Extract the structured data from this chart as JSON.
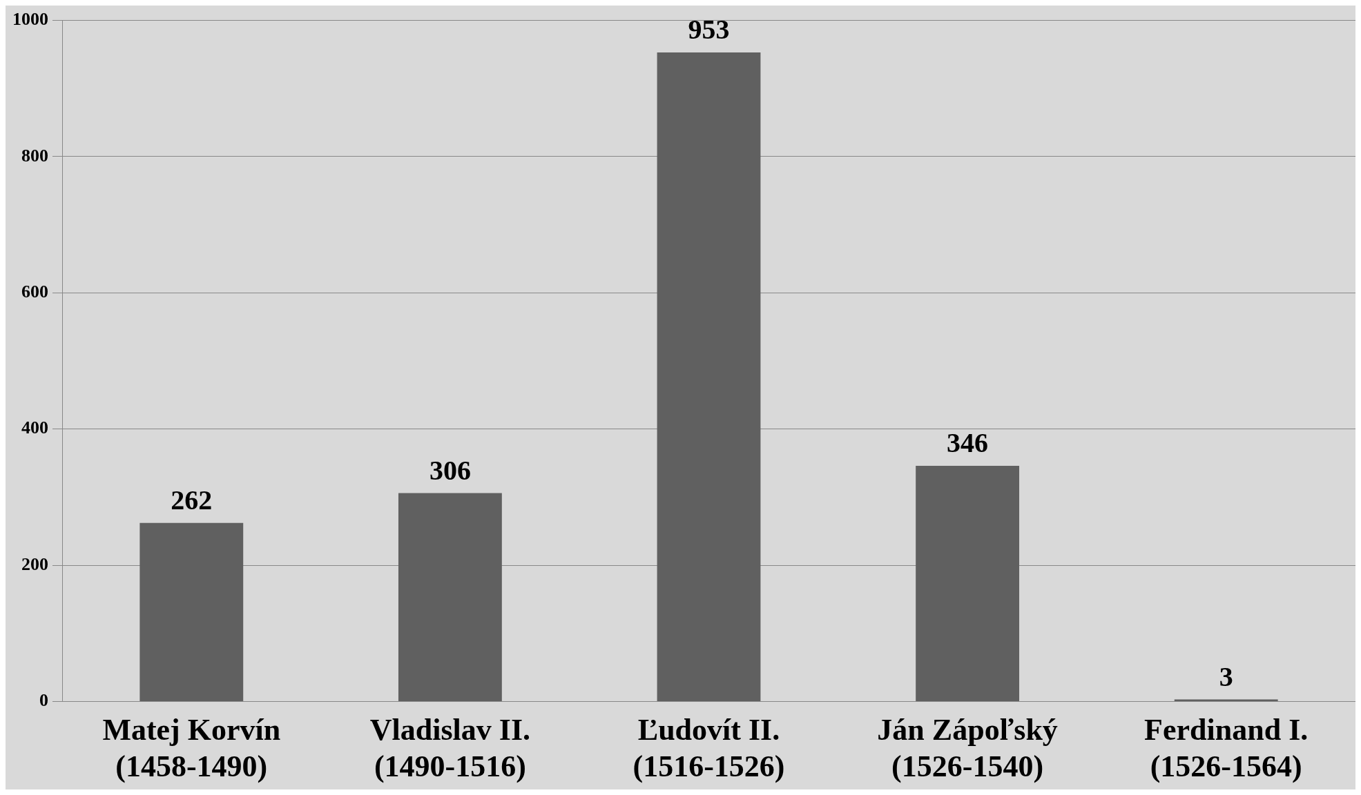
{
  "chart_data": {
    "type": "bar",
    "categories": [
      "Matej Korvín\n(1458-1490)",
      "Vladislav II.\n(1490-1516)",
      "Ľudovít II.\n(1516-1526)",
      "Ján Zápoľský\n(1526-1540)",
      "Ferdinand I.\n(1526-1564)"
    ],
    "values": [
      262,
      306,
      953,
      346,
      3
    ],
    "color": "#606060",
    "ylim": [
      0,
      1000
    ],
    "yticks": [
      0,
      200,
      400,
      600,
      800,
      1000
    ],
    "grid": "y",
    "data_labels": true
  }
}
